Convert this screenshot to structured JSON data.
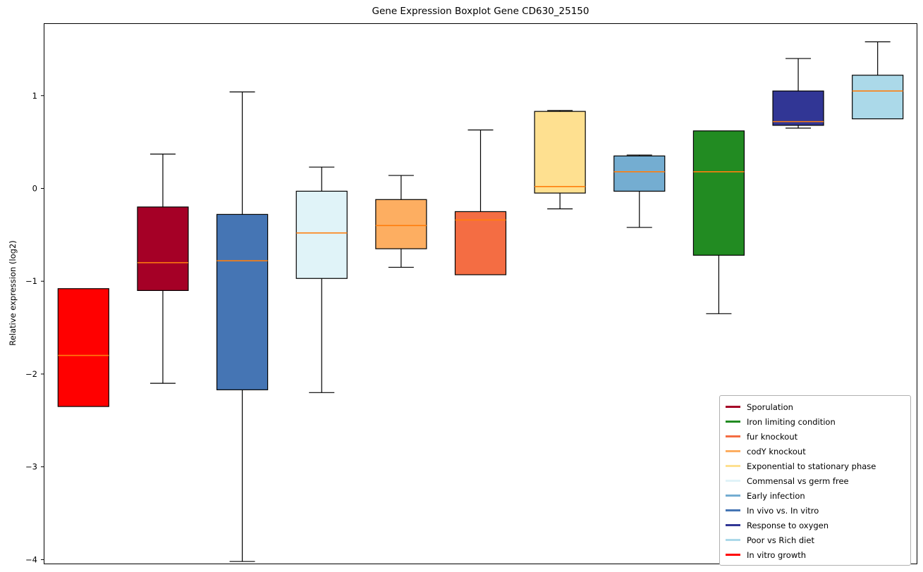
{
  "title": "Gene Expression Boxplot Gene CD630_25150",
  "ylabel": "Relative expression (log2)",
  "chart_data": {
    "type": "boxplot",
    "title": "Gene Expression Boxplot Gene CD630_25150",
    "xlabel": "",
    "ylabel": "Relative expression (log2)",
    "ylim": [
      -4.05,
      1.78
    ],
    "grid": false,
    "legend_position": "lower right",
    "median_color": "#ff7f0e",
    "box_edge_color": "#000000",
    "yticks": [
      {
        "v": 1,
        "label": "1"
      },
      {
        "v": 0,
        "label": "0"
      },
      {
        "v": -1,
        "label": "−1"
      },
      {
        "v": -2,
        "label": "−2"
      },
      {
        "v": -3,
        "label": "−3"
      },
      {
        "v": -4,
        "label": "−4"
      }
    ],
    "series": [
      {
        "name": "In vitro growth",
        "color": "#ff0000",
        "whislo": -2.35,
        "q1": -2.35,
        "med": -1.8,
        "q3": -1.08,
        "whishi": -1.08
      },
      {
        "name": "Sporulation",
        "color": "#a50026",
        "whislo": -2.1,
        "q1": -1.1,
        "med": -0.8,
        "q3": -0.2,
        "whishi": 0.37
      },
      {
        "name": "In vivo vs. In vitro",
        "color": "#4575b4",
        "whislo": -4.02,
        "q1": -2.17,
        "med": -0.78,
        "q3": -0.28,
        "whishi": 1.04
      },
      {
        "name": "Commensal vs germ free",
        "color": "#e0f3f8",
        "whislo": -2.2,
        "q1": -0.97,
        "med": -0.48,
        "q3": -0.03,
        "whishi": 0.23
      },
      {
        "name": "codY knockout",
        "color": "#fdae61",
        "whislo": -0.85,
        "q1": -0.65,
        "med": -0.4,
        "q3": -0.12,
        "whishi": 0.14
      },
      {
        "name": "fur knockout",
        "color": "#f46d43",
        "whislo": -0.93,
        "q1": -0.93,
        "med": -0.34,
        "q3": -0.25,
        "whishi": 0.63
      },
      {
        "name": "Exponential to stationary phase",
        "color": "#fee090",
        "whislo": -0.22,
        "q1": -0.05,
        "med": 0.02,
        "q3": 0.83,
        "whishi": 0.84
      },
      {
        "name": "Early infection",
        "color": "#74add1",
        "whislo": -0.42,
        "q1": -0.03,
        "med": 0.18,
        "q3": 0.35,
        "whishi": 0.36
      },
      {
        "name": "Iron limiting condition",
        "color": "#228b22",
        "whislo": -1.35,
        "q1": -0.72,
        "med": 0.18,
        "q3": 0.62,
        "whishi": 0.62
      },
      {
        "name": "Response to oxygen",
        "color": "#313695",
        "whislo": 0.65,
        "q1": 0.68,
        "med": 0.72,
        "q3": 1.05,
        "whishi": 1.4
      },
      {
        "name": "Poor vs Rich diet",
        "color": "#abd9e9",
        "whislo": 0.75,
        "q1": 0.75,
        "med": 1.05,
        "q3": 1.22,
        "whishi": 1.58
      }
    ],
    "legend": [
      {
        "label": "Sporulation",
        "color": "#a50026"
      },
      {
        "label": "Iron limiting condition",
        "color": "#228b22"
      },
      {
        "label": "fur knockout",
        "color": "#f46d43"
      },
      {
        "label": "codY knockout",
        "color": "#fdae61"
      },
      {
        "label": "Exponential to stationary phase",
        "color": "#fee090"
      },
      {
        "label": "Commensal vs germ free",
        "color": "#e0f3f8"
      },
      {
        "label": "Early infection",
        "color": "#74add1"
      },
      {
        "label": "In vivo vs. In vitro",
        "color": "#4575b4"
      },
      {
        "label": "Response to oxygen",
        "color": "#313695"
      },
      {
        "label": "Poor vs Rich diet",
        "color": "#abd9e9"
      },
      {
        "label": "In vitro growth",
        "color": "#ff0000"
      }
    ]
  }
}
